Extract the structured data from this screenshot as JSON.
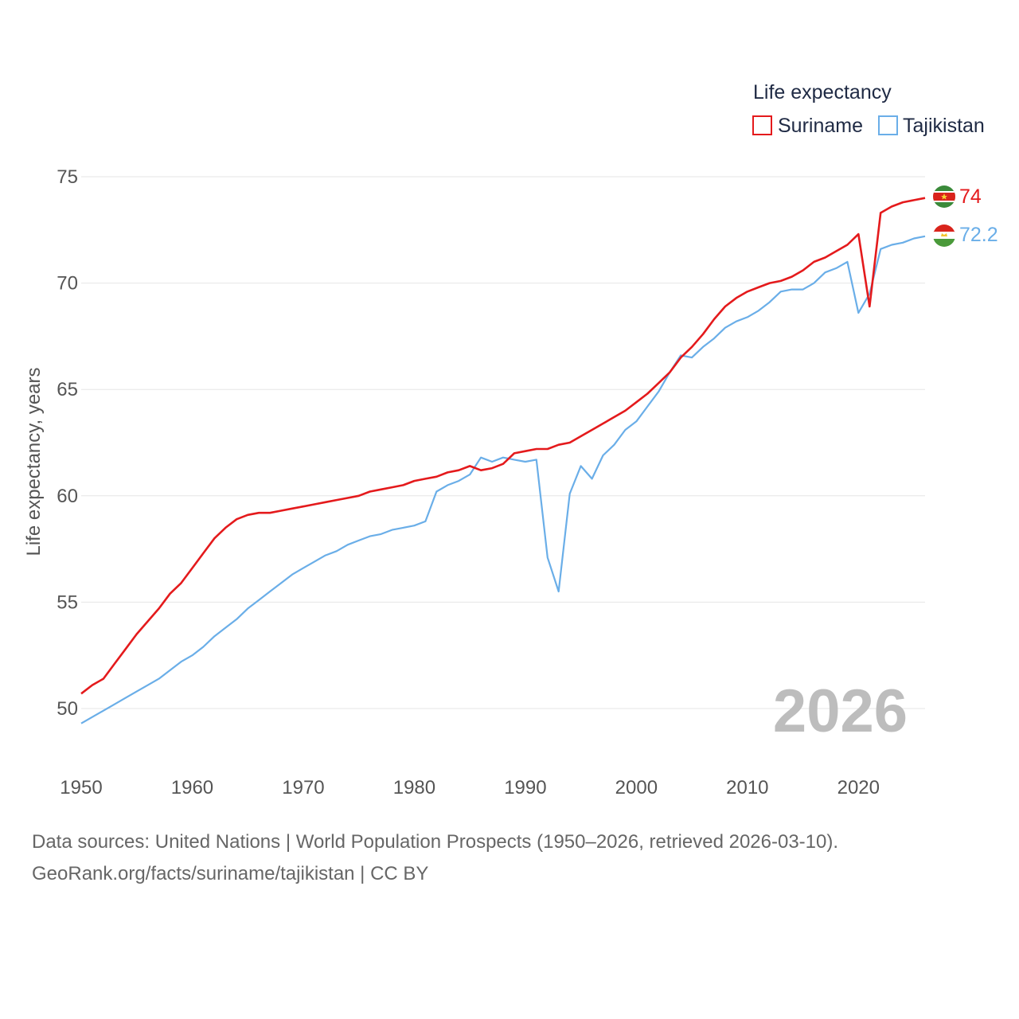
{
  "chart_data": {
    "type": "line",
    "ylabel": "Life expectancy, years",
    "legend_title": "Life expectancy",
    "legend_position": "top-right",
    "xlim": [
      1950,
      2026
    ],
    "ylim": [
      48,
      77
    ],
    "x_ticks": [
      1950,
      1960,
      1970,
      1980,
      1990,
      2000,
      2010,
      2020
    ],
    "y_ticks": [
      50,
      55,
      60,
      65,
      70,
      75
    ],
    "grid": true,
    "current_year_label": "2026",
    "x": [
      1950,
      1951,
      1952,
      1953,
      1954,
      1955,
      1956,
      1957,
      1958,
      1959,
      1960,
      1961,
      1962,
      1963,
      1964,
      1965,
      1966,
      1967,
      1968,
      1969,
      1970,
      1971,
      1972,
      1973,
      1974,
      1975,
      1976,
      1977,
      1978,
      1979,
      1980,
      1981,
      1982,
      1983,
      1984,
      1985,
      1986,
      1987,
      1988,
      1989,
      1990,
      1991,
      1992,
      1993,
      1994,
      1995,
      1996,
      1997,
      1998,
      1999,
      2000,
      2001,
      2002,
      2003,
      2004,
      2005,
      2006,
      2007,
      2008,
      2009,
      2010,
      2011,
      2012,
      2013,
      2014,
      2015,
      2016,
      2017,
      2018,
      2019,
      2020,
      2021,
      2022,
      2023,
      2024,
      2025,
      2026
    ],
    "series": [
      {
        "name": "Suriname",
        "color": "#e41a1c",
        "end_label": "74",
        "values": [
          50.7,
          51.1,
          51.4,
          52.1,
          52.8,
          53.5,
          54.1,
          54.7,
          55.4,
          55.9,
          56.6,
          57.3,
          58.0,
          58.5,
          58.9,
          59.1,
          59.2,
          59.2,
          59.3,
          59.4,
          59.5,
          59.6,
          59.7,
          59.8,
          59.9,
          60.0,
          60.2,
          60.3,
          60.4,
          60.5,
          60.7,
          60.8,
          60.9,
          61.1,
          61.2,
          61.4,
          61.2,
          61.3,
          61.5,
          62.0,
          62.1,
          62.2,
          62.2,
          62.4,
          62.5,
          62.8,
          63.1,
          63.4,
          63.7,
          64.0,
          64.4,
          64.8,
          65.3,
          65.8,
          66.5,
          67.0,
          67.6,
          68.3,
          68.9,
          69.3,
          69.6,
          69.8,
          70.0,
          70.1,
          70.3,
          70.6,
          71.0,
          71.2,
          71.5,
          71.8,
          72.3,
          68.9,
          73.3,
          73.6,
          73.8,
          73.9,
          74.0
        ]
      },
      {
        "name": "Tajikistan",
        "color": "#6aaee8",
        "end_label": "72.2",
        "values": [
          49.3,
          49.6,
          49.9,
          50.2,
          50.5,
          50.8,
          51.1,
          51.4,
          51.8,
          52.2,
          52.5,
          52.9,
          53.4,
          53.8,
          54.2,
          54.7,
          55.1,
          55.5,
          55.9,
          56.3,
          56.6,
          56.9,
          57.2,
          57.4,
          57.7,
          57.9,
          58.1,
          58.2,
          58.4,
          58.5,
          58.6,
          58.8,
          60.2,
          60.5,
          60.7,
          61.0,
          61.8,
          61.6,
          61.8,
          61.7,
          61.6,
          61.7,
          57.1,
          55.5,
          60.1,
          61.4,
          60.8,
          61.9,
          62.4,
          63.1,
          63.5,
          64.2,
          64.9,
          65.8,
          66.6,
          66.5,
          67.0,
          67.4,
          67.9,
          68.2,
          68.4,
          68.7,
          69.1,
          69.6,
          69.7,
          69.7,
          70.0,
          70.5,
          70.7,
          71.0,
          68.6,
          69.5,
          71.6,
          71.8,
          71.9,
          72.1,
          72.2
        ]
      }
    ]
  },
  "flags": {
    "suriname": {
      "top": "#3a8a3a",
      "middle": "#d9241c",
      "bottom": "#3a8a3a",
      "band": "#ffffff",
      "star": "#f4d02f"
    },
    "tajikistan": {
      "top": "#d9241c",
      "middle": "#ffffff",
      "bottom": "#4a9a3a",
      "crown": "#f4c430"
    }
  },
  "footer": {
    "sources": "Data sources: United Nations | World Population Prospects (1950–2026, retrieved 2026-03-10).",
    "url": "GeoRank.org/facts/suriname/tajikistan | CC BY"
  }
}
